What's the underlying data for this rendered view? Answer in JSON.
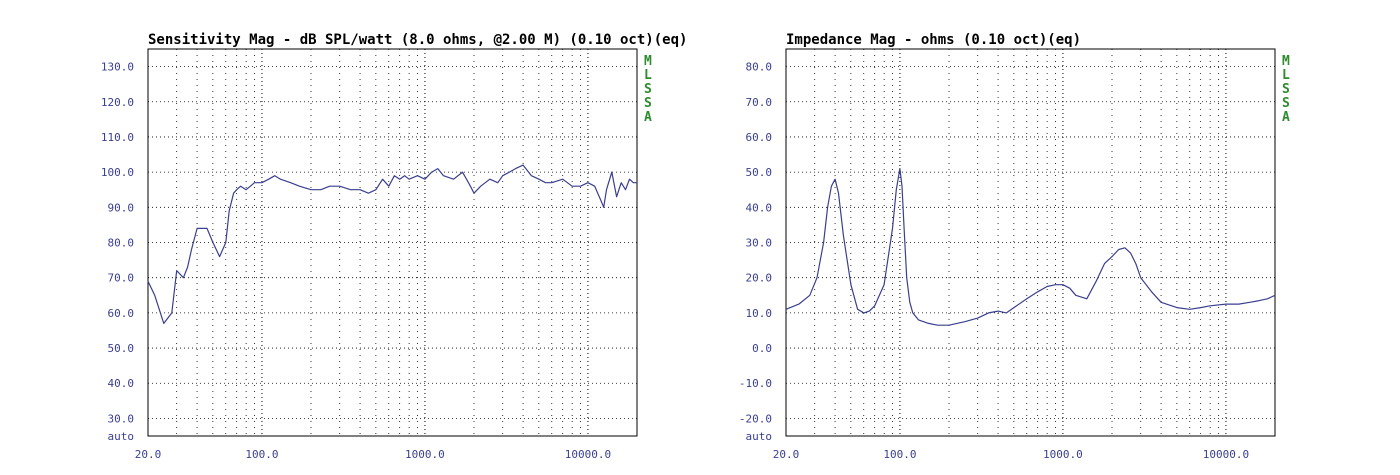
{
  "colors": {
    "curve": "#3a3f8f",
    "tick_label": "#3a3f8f",
    "brand": "#2e8b2e"
  },
  "chart_data": [
    {
      "type": "line",
      "title": "Sensitivity Mag - dB SPL/watt (8.0 ohms, @2.00 M) (0.10 oct)(eq)",
      "x_scale": "log",
      "xlim": [
        20,
        20000
      ],
      "ylim": [
        25,
        135
      ],
      "y_ticks": [
        "130.0",
        "120.0",
        "110.0",
        "100.0",
        "90.0",
        "80.0",
        "70.0",
        "60.0",
        "50.0",
        "40.0",
        "30.0"
      ],
      "y_ticks_values": [
        130,
        120,
        110,
        100,
        90,
        80,
        70,
        60,
        50,
        40,
        30
      ],
      "y_bottom_label": "auto",
      "x_ticks": [
        "20.0",
        "100.0",
        "1000.0",
        "10000.0"
      ],
      "x_ticks_values": [
        20,
        100,
        1000,
        10000
      ],
      "grid": true,
      "brand_letters": [
        "M",
        "L",
        "S",
        "S",
        "A"
      ],
      "series": [
        {
          "x": [
            20,
            22,
            25,
            28,
            30,
            33,
            35,
            37,
            40,
            43,
            46,
            50,
            55,
            60,
            63,
            67,
            70,
            74,
            80,
            85,
            90,
            100,
            110,
            120,
            130,
            150,
            170,
            200,
            230,
            260,
            300,
            350,
            400,
            450,
            500,
            550,
            600,
            650,
            700,
            750,
            800,
            900,
            1000,
            1100,
            1200,
            1300,
            1500,
            1700,
            1900,
            2000,
            2200,
            2500,
            2800,
            3000,
            3300,
            3600,
            4000,
            4500,
            5000,
            5500,
            6000,
            7000,
            8000,
            9000,
            10000,
            11000,
            12000,
            12500,
            13000,
            14000,
            15000,
            16000,
            17000,
            18000,
            19000,
            20000
          ],
          "values": [
            69,
            65,
            57,
            60,
            72,
            70,
            73,
            78,
            84,
            84,
            84,
            80,
            76,
            80,
            89,
            94,
            95,
            96,
            95,
            96,
            97,
            97,
            98,
            99,
            98,
            97,
            96,
            95,
            95,
            96,
            96,
            95,
            95,
            94,
            95,
            98,
            96,
            99,
            98,
            99,
            98,
            99,
            98,
            100,
            101,
            99,
            98,
            100,
            96,
            94,
            96,
            98,
            97,
            99,
            100,
            101,
            102,
            99,
            98,
            97,
            97,
            98,
            96,
            96,
            97,
            96,
            92,
            90,
            95,
            100,
            93,
            97,
            95,
            98,
            97,
            97
          ]
        }
      ]
    },
    {
      "type": "line",
      "title": "Impedance Mag - ohms (0.10 oct)(eq)",
      "x_scale": "log",
      "xlim": [
        20,
        20000
      ],
      "ylim": [
        -25,
        85
      ],
      "y_ticks": [
        "80.0",
        "70.0",
        "60.0",
        "50.0",
        "40.0",
        "30.0",
        "20.0",
        "10.0",
        "0.0",
        "-10.0",
        "-20.0"
      ],
      "y_ticks_values": [
        80,
        70,
        60,
        50,
        40,
        30,
        20,
        10,
        0,
        -10,
        -20
      ],
      "y_bottom_label": "auto",
      "x_ticks": [
        "20.0",
        "100.0",
        "1000.0",
        "10000.0"
      ],
      "x_ticks_values": [
        20,
        100,
        1000,
        10000
      ],
      "grid": true,
      "brand_letters": [
        "M",
        "L",
        "S",
        "S",
        "A"
      ],
      "series": [
        {
          "x": [
            20,
            24,
            28,
            31,
            34,
            36,
            38,
            40,
            42,
            45,
            50,
            55,
            60,
            65,
            70,
            80,
            90,
            95,
            100,
            103,
            106,
            110,
            115,
            120,
            130,
            150,
            170,
            200,
            250,
            300,
            350,
            400,
            450,
            500,
            600,
            700,
            800,
            900,
            1000,
            1100,
            1200,
            1400,
            1600,
            1800,
            2000,
            2200,
            2400,
            2600,
            2800,
            3000,
            3500,
            4000,
            5000,
            6000,
            7000,
            8000,
            10000,
            12000,
            14000,
            16000,
            18000,
            20000
          ],
          "values": [
            11,
            12.5,
            15,
            20,
            30,
            40,
            46,
            48,
            44,
            32,
            18,
            11,
            10,
            10.5,
            12,
            18,
            34,
            45,
            51,
            46,
            34,
            20,
            13,
            10,
            8,
            7,
            6.5,
            6.5,
            7.5,
            8.5,
            10,
            10.5,
            10,
            11.5,
            14,
            16,
            17.5,
            18,
            18,
            17,
            15,
            14,
            19,
            24,
            26,
            28,
            28.5,
            27,
            24,
            20,
            16,
            13,
            11.5,
            11,
            11.5,
            12,
            12.5,
            12.5,
            13,
            13.5,
            14,
            15
          ]
        }
      ]
    }
  ]
}
